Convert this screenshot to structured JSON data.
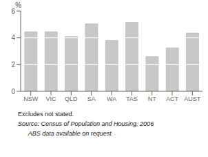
{
  "chart_data": {
    "type": "bar",
    "categories": [
      "NSW",
      "VIC",
      "QLD",
      "SA",
      "WA",
      "TAS",
      "NT",
      "ACT",
      "AUST"
    ],
    "values": [
      4.45,
      4.45,
      4.1,
      5.05,
      3.8,
      5.15,
      2.6,
      3.25,
      4.35
    ],
    "color": "#c8c8c8",
    "ylim": [
      0,
      6
    ],
    "yticks": [
      0,
      2,
      4,
      6
    ],
    "ylabel": "%",
    "annotations": [
      "Excludes not stated.",
      "Source: Census of Population and Housing, 2006",
      "      ABS data available on request"
    ]
  }
}
